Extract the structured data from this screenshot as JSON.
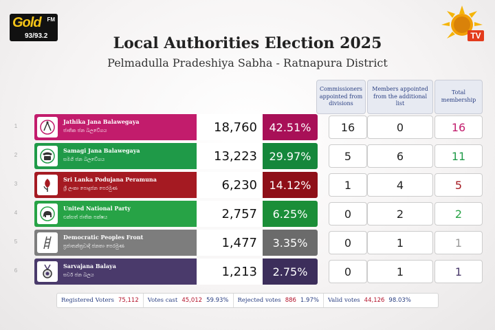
{
  "logos": {
    "left": {
      "text": "Gold",
      "fm": "FM",
      "freq": "93/93.2"
    },
    "right": {
      "text": "TV"
    }
  },
  "title": "Local Authorities Election 2025",
  "subtitle": "Pelmadulla Pradeshiya Sabha - Ratnapura District",
  "headers": {
    "commissioners": "Commissioners appointed from divisions",
    "members": "Members appointed from the additional list",
    "total": "Total membership"
  },
  "parties": [
    {
      "num": "1",
      "name": "Jathika Jana Balawegaya",
      "sinhala": "ජාතික ජන බලවේගය",
      "votes": "18,760",
      "percent": "42.51%",
      "commissioners": "16",
      "members": "0",
      "total": "16",
      "color": "#c21c6c",
      "pct_color": "#a81057",
      "total_color": "#c21c6c",
      "icon": "compass-icon"
    },
    {
      "num": "2",
      "name": "Samagi Jana Balawegaya",
      "sinhala": "සමගි ජන බලවේගය",
      "votes": "13,223",
      "percent": "29.97%",
      "commissioners": "5",
      "members": "6",
      "total": "11",
      "color": "#1f9a48",
      "pct_color": "#15873b",
      "total_color": "#1f9a48",
      "icon": "telephone-icon"
    },
    {
      "num": "3",
      "name": "Sri Lanka Podujana Peramuna",
      "sinhala": "ශ්‍රී ලංකා පොදුජන පෙරමුණ",
      "votes": "6,230",
      "percent": "14.12%",
      "commissioners": "1",
      "members": "4",
      "total": "5",
      "color": "#a51a22",
      "pct_color": "#8e0f18",
      "total_color": "#a51a22",
      "icon": "flower-bud-icon"
    },
    {
      "num": "4",
      "name": "United National Party",
      "sinhala": "එක්සත් ජාතික පක්ෂය",
      "votes": "2,757",
      "percent": "6.25%",
      "commissioners": "0",
      "members": "2",
      "total": "2",
      "color": "#27a346",
      "pct_color": "#1b8e38",
      "total_color": "#27a346",
      "icon": "elephant-icon"
    },
    {
      "num": "5",
      "name": "Democratic Peoples Front",
      "sinhala": "ප්‍රජාතන්ත්‍රවාදී ජනතා පෙරමුණ",
      "votes": "1,477",
      "percent": "3.35%",
      "commissioners": "0",
      "members": "1",
      "total": "1",
      "color": "#7d7d7d",
      "pct_color": "#6b6b6b",
      "total_color": "#9a9a9a",
      "icon": "ladder-icon"
    },
    {
      "num": "6",
      "name": "Sarvajana Balaya",
      "sinhala": "සර්ව ජන බලය",
      "votes": "1,213",
      "percent": "2.75%",
      "commissioners": "0",
      "members": "1",
      "total": "1",
      "color": "#4a3a6b",
      "pct_color": "#3c2e5b",
      "total_color": "#4a3a6b",
      "icon": "medal-icon"
    }
  ],
  "footer": {
    "registered_label": "Registered Voters",
    "registered_value": "75,112",
    "cast_label": "Votes cast",
    "cast_value": "45,012",
    "cast_pct": "59.93%",
    "rejected_label": "Rejected votes",
    "rejected_value": "886",
    "rejected_pct": "1.97%",
    "valid_label": "Valid votes",
    "valid_value": "44,126",
    "valid_pct": "98.03%"
  }
}
